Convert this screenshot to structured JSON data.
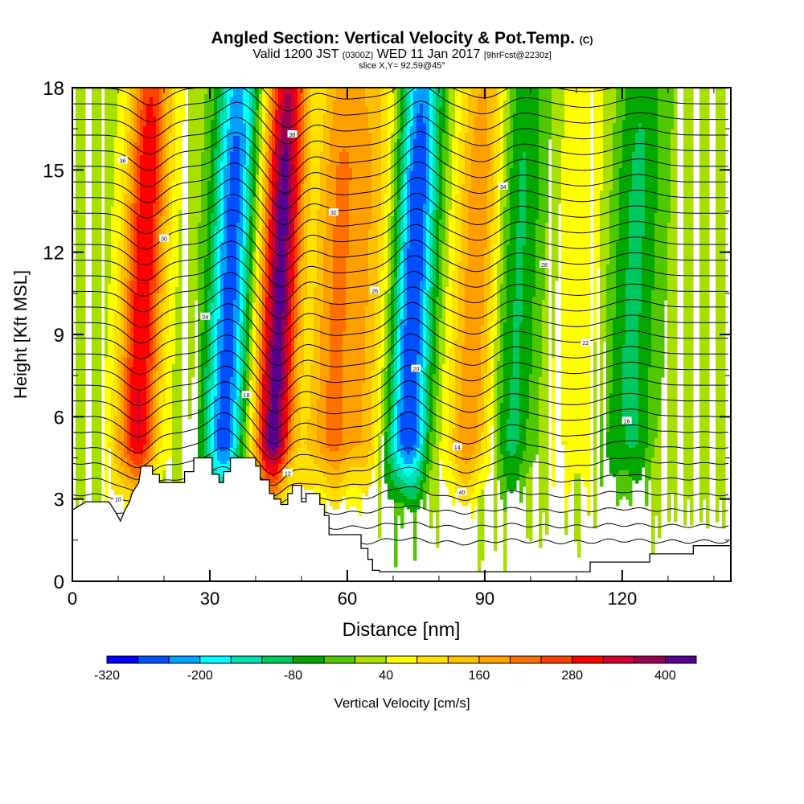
{
  "title": {
    "main": "Angled Section: Vertical Velocity & Pot.Temp.",
    "main_suffix": "(C)",
    "valid_prefix": "Valid 1200 JST",
    "valid_zulu": "(0300Z)",
    "valid_date": "WED 11 Jan 2017",
    "valid_fcst": "[9hrFcst@2230z]",
    "slice": "slice X,Y= 92,59@45°"
  },
  "chart_data": {
    "type": "heatmap",
    "title": "Angled Section: Vertical Velocity & Pot.Temp.",
    "xlabel": "Distance [nm]",
    "ylabel": "Height [Kft MSL]",
    "xlim": [
      0,
      143.7
    ],
    "ylim": [
      0,
      18
    ],
    "x_ticks": [
      0,
      30,
      60,
      90,
      120
    ],
    "x_tick_labels": [
      "0",
      "30",
      "60",
      "90",
      "120"
    ],
    "x_minor_step": 10,
    "y_ticks": [
      0,
      3,
      6,
      9,
      12,
      15,
      18
    ],
    "y_tick_labels": [
      "0",
      "3",
      "6",
      "9",
      "12",
      "15",
      "18"
    ],
    "y_minor_step": 1.5,
    "colorbar": {
      "label": "Vertical Velocity [cm/s]",
      "levels": [
        -320,
        -280,
        -240,
        -200,
        -160,
        -120,
        -80,
        -40,
        0,
        40,
        80,
        120,
        160,
        200,
        240,
        280,
        320,
        360,
        400,
        440
      ],
      "tick_labels": [
        "-320",
        "-200",
        "-80",
        "40",
        "160",
        "280",
        "400"
      ],
      "tick_values": [
        -320,
        -200,
        -80,
        40,
        160,
        280,
        400
      ],
      "colors": [
        "#0000ff",
        "#0050ff",
        "#00a0ff",
        "#00ffff",
        "#00e0b0",
        "#00c860",
        "#00a800",
        "#50c800",
        "#a8e000",
        "#ffff00",
        "#ffe000",
        "#ffc000",
        "#ffa000",
        "#ff7000",
        "#ff4000",
        "#ff0000",
        "#d00030",
        "#980050",
        "#580090"
      ]
    },
    "features": [
      {
        "name": "updraft",
        "x_nm": 15,
        "peak_cm_s": 300
      },
      {
        "name": "downdraft",
        "x_nm": 34,
        "peak_cm_s": -280
      },
      {
        "name": "updraft",
        "x_nm": 45,
        "peak_cm_s": 420
      },
      {
        "name": "downdraft",
        "x_nm": 50,
        "peak_cm_s": -60
      },
      {
        "name": "updraft",
        "x_nm": 56,
        "peak_cm_s": 180
      },
      {
        "name": "updraft",
        "x_nm": 64,
        "peak_cm_s": 120
      },
      {
        "name": "downdraft",
        "x_nm": 74,
        "peak_cm_s": -300
      },
      {
        "name": "updraft",
        "x_nm": 88,
        "peak_cm_s": 180
      },
      {
        "name": "downdraft",
        "x_nm": 96,
        "peak_cm_s": -120
      },
      {
        "name": "updraft",
        "x_nm": 110,
        "peak_cm_s": 60
      },
      {
        "name": "downdraft",
        "x_nm": 122,
        "peak_cm_s": -110
      }
    ],
    "terrain_kft": [
      [
        0,
        2.6
      ],
      [
        3,
        2.9
      ],
      [
        8,
        2.9
      ],
      [
        9.5,
        2.5
      ],
      [
        10.5,
        2.2
      ],
      [
        11.5,
        2.6
      ],
      [
        12.5,
        2.9
      ],
      [
        13,
        3.2
      ],
      [
        14.5,
        3.6
      ],
      [
        15,
        4.2
      ],
      [
        17.5,
        4.2
      ],
      [
        17.5,
        3.9
      ],
      [
        19,
        3.9
      ],
      [
        19,
        3.6
      ],
      [
        24.5,
        3.6
      ],
      [
        24.5,
        4.0
      ],
      [
        26.5,
        4.0
      ],
      [
        26.5,
        4.5
      ],
      [
        30.5,
        4.5
      ],
      [
        30.5,
        3.9
      ],
      [
        32,
        3.9
      ],
      [
        32,
        3.6
      ],
      [
        33,
        3.6
      ],
      [
        33,
        4.0
      ],
      [
        34.5,
        4.0
      ],
      [
        34.5,
        4.5
      ],
      [
        40,
        4.5
      ],
      [
        40,
        4.2
      ],
      [
        41,
        4.2
      ],
      [
        41,
        3.7
      ],
      [
        43,
        3.7
      ],
      [
        43,
        3.2
      ],
      [
        44,
        3.2
      ],
      [
        44,
        3.0
      ],
      [
        45.5,
        3.0
      ],
      [
        45.5,
        2.8
      ],
      [
        47,
        2.8
      ],
      [
        47,
        3.2
      ],
      [
        48,
        3.2
      ],
      [
        48,
        3.5
      ],
      [
        50,
        3.5
      ],
      [
        50,
        2.9
      ],
      [
        51,
        2.9
      ],
      [
        51,
        3.2
      ],
      [
        54,
        3.2
      ],
      [
        54,
        2.8
      ],
      [
        55,
        2.8
      ],
      [
        55,
        2.4
      ],
      [
        56,
        2.4
      ],
      [
        56,
        1.7
      ],
      [
        63,
        1.7
      ],
      [
        63,
        1.2
      ],
      [
        64.5,
        1.2
      ],
      [
        64.5,
        0.8
      ],
      [
        65.5,
        0.8
      ],
      [
        65.5,
        0.4
      ],
      [
        67,
        0.4
      ],
      [
        67,
        0.35
      ],
      [
        113,
        0.35
      ],
      [
        113,
        0.7
      ],
      [
        120,
        0.7
      ],
      [
        120,
        0.7
      ],
      [
        126,
        0.7
      ],
      [
        126,
        1.0
      ],
      [
        135.5,
        1.0
      ],
      [
        135.5,
        1.3
      ],
      [
        143.7,
        1.3
      ]
    ],
    "theta_contour_labels_c": [
      "10",
      "12",
      "14",
      "16",
      "18",
      "20",
      "22",
      "24",
      "26",
      "28",
      "30",
      "32",
      "34",
      "36",
      "38",
      "40"
    ]
  }
}
